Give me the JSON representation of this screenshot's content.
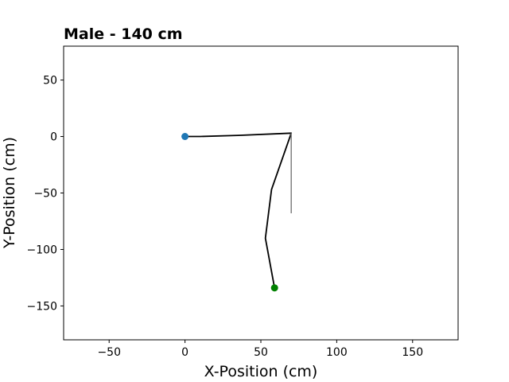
{
  "chart_data": {
    "type": "line",
    "title": "Male - 140 cm",
    "xlabel": "X-Position (cm)",
    "ylabel": "Y-Position (cm)",
    "xlim": [
      -80,
      180
    ],
    "ylim": [
      -180,
      80
    ],
    "xticks": [
      -50,
      0,
      50,
      100,
      150
    ],
    "yticks": [
      50,
      0,
      -50,
      -100,
      -150
    ],
    "xtick_labels": [
      "−50",
      "0",
      "50",
      "100",
      "150"
    ],
    "ytick_labels": [
      "50",
      "0",
      "−50",
      "−100",
      "−150"
    ],
    "grid": false,
    "series": [
      {
        "role": "limb-chain",
        "color": "#000000",
        "points": [
          [
            0,
            0
          ],
          [
            10,
            0
          ],
          [
            35,
            1
          ],
          [
            70,
            3
          ],
          [
            57,
            -47
          ],
          [
            53,
            -90
          ],
          [
            59,
            -134
          ]
        ]
      },
      {
        "role": "reference-line",
        "color": "#808080",
        "points": [
          [
            70,
            3
          ],
          [
            70,
            -68
          ]
        ]
      }
    ],
    "markers": [
      {
        "role": "start-marker",
        "x": 0,
        "y": 0,
        "color": "#1f77b4"
      },
      {
        "role": "end-marker",
        "x": 59,
        "y": -134,
        "color": "#008000"
      }
    ]
  }
}
